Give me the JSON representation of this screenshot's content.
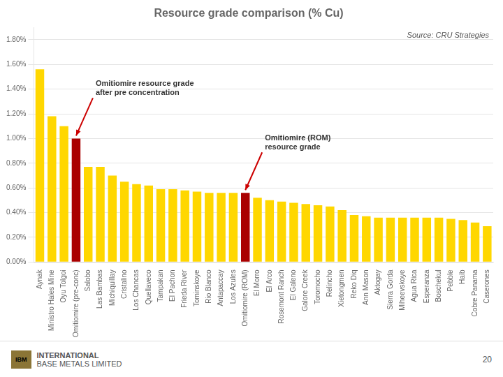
{
  "chart_data": {
    "type": "bar",
    "title": "Resource grade comparison (% Cu)",
    "categories": [
      "Aynak",
      "Ministro Hales Mine",
      "Oyu Tolgoi",
      "Omitiomire (pre-conc)",
      "Salobo",
      "Las Bambas",
      "Michiquillay",
      "Cristalino",
      "Los Chancas",
      "Quellaveco",
      "Tampakan",
      "El Pachon",
      "Frieda River",
      "Tominskoye",
      "Rio Blanco",
      "Antapaccay",
      "Los Azules",
      "Omitiomire (ROM)",
      "El Morro",
      "El Arco",
      "Rosemont Ranch",
      "El Galeno",
      "Galore Creek",
      "Toromocho",
      "Relincho",
      "Xietongmen",
      "Reko Diq",
      "Ann Mason",
      "Aktogay",
      "Sierra Gorda",
      "Miheevskoye",
      "Agua Rica",
      "Esperanza",
      "Boschekul",
      "Pebble",
      "Haib",
      "Cobre Panama",
      "Caserones"
    ],
    "values": [
      0.0156,
      0.0118,
      0.011,
      0.01,
      0.0077,
      0.0077,
      0.007,
      0.0065,
      0.0063,
      0.0062,
      0.0059,
      0.0059,
      0.0058,
      0.0057,
      0.0056,
      0.0056,
      0.0056,
      0.0056,
      0.0052,
      0.005,
      0.0049,
      0.0048,
      0.0047,
      0.0046,
      0.0045,
      0.0042,
      0.0038,
      0.0037,
      0.0036,
      0.0036,
      0.0036,
      0.0036,
      0.0036,
      0.0036,
      0.0035,
      0.0034,
      0.0032,
      0.0029
    ],
    "colors": [
      "#FFD700",
      "#FFD700",
      "#FFD700",
      "#AA0000",
      "#FFD700",
      "#FFD700",
      "#FFD700",
      "#FFD700",
      "#FFD700",
      "#FFD700",
      "#FFD700",
      "#FFD700",
      "#FFD700",
      "#FFD700",
      "#FFD700",
      "#FFD700",
      "#FFD700",
      "#AA0000",
      "#FFD700",
      "#FFD700",
      "#FFD700",
      "#FFD700",
      "#FFD700",
      "#FFD700",
      "#FFD700",
      "#FFD700",
      "#FFD700",
      "#FFD700",
      "#FFD700",
      "#FFD700",
      "#FFD700",
      "#FFD700",
      "#FFD700",
      "#FFD700",
      "#FFD700",
      "#FFD700",
      "#FFD700",
      "#FFD700"
    ],
    "ylim": [
      0,
      0.019
    ],
    "yticks": [
      {
        "value": 0,
        "label": "0.00%"
      },
      {
        "value": 0.002,
        "label": "0.20%"
      },
      {
        "value": 0.004,
        "label": "0.40%"
      },
      {
        "value": 0.006,
        "label": "0.60%"
      },
      {
        "value": 0.008,
        "label": "0.80%"
      },
      {
        "value": 0.01,
        "label": "1.00%"
      },
      {
        "value": 0.012,
        "label": "1.20%"
      },
      {
        "value": 0.014,
        "label": "1.40%"
      },
      {
        "value": 0.016,
        "label": "1.60%"
      },
      {
        "value": 0.018,
        "label": "1.80%"
      }
    ],
    "grid": true,
    "annotations": [
      {
        "text": "Omitiomire resource grade\nafter pre concentration",
        "category": "Omitiomire (pre-conc)",
        "color": "#CC0000"
      },
      {
        "text": "Omitiomire (ROM)\nresource grade",
        "category": "Omitiomire (ROM)",
        "color": "#CC0000"
      }
    ],
    "source": "Source: CRU Strategies",
    "footer": {
      "logo": "IBM",
      "lines": [
        "INTERNATIONAL",
        "BASE METALS LIMITED"
      ],
      "page": "20"
    }
  }
}
